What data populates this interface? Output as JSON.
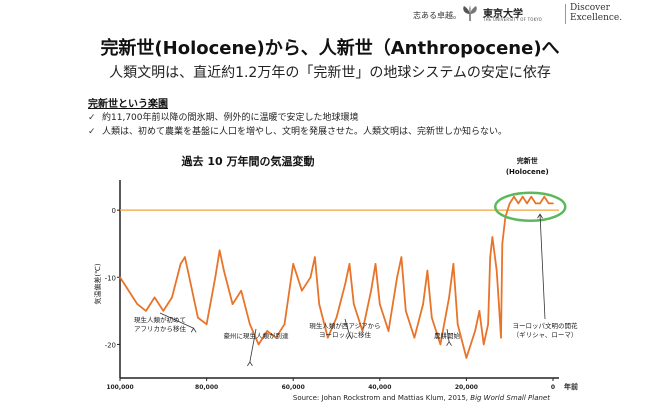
{
  "header": {
    "slogan": "志ある卓越。",
    "university_name": "東京大学",
    "university_sub": "THE UNIVERSITY OF TOKYO",
    "tagline_line1": "Discover",
    "tagline_line2": "Excellence."
  },
  "slide": {
    "title": "完新世(Holocene)から、人新世（Anthropocene)へ",
    "subtitle": "人類文明は、直近約1.2万年の「完新世」の地球システムの安定に依存",
    "section_title": "完新世という楽園",
    "bullets": [
      "約11,700年前以降の間氷期、例外的に温暖で安定した地球環境",
      "人類は、初めて農業を基盤に人口を増やし、文明を発展させた。人類文明は、完新世しか知らない。"
    ],
    "check_glyph": "✓",
    "source_prefix": "Source: Johan Rockstrom and Mattias Klum, 2015, ",
    "source_book": "Big World Small Planet"
  },
  "chart_data": {
    "type": "line",
    "title": "過去 10 万年間の気温変動",
    "ylabel": "気温偏差(℃)",
    "xlabel": "年前",
    "x_ticks": [
      "100,000",
      "80,000",
      "60,000",
      "40,000",
      "20,000",
      "0"
    ],
    "y_ticks": [
      "0",
      "-10",
      "-20"
    ],
    "xlim": [
      100000,
      0
    ],
    "ylim": [
      -25,
      3
    ],
    "grid": false,
    "reference_line": {
      "y": 0,
      "color": "#f2a33a"
    },
    "series_color": "#e8742a",
    "highlight_color": "#5cb85c",
    "holocene_label_line1": "完新世",
    "holocene_label_line2": "(Holocene)",
    "series": [
      {
        "x": [
          100000,
          98000,
          96000,
          94000,
          92000,
          90000,
          88000,
          86000,
          85000,
          84000,
          82000,
          80000,
          78000,
          77000,
          76000,
          74000,
          72000,
          70000,
          68000,
          66000,
          64000,
          62000,
          60000,
          58000,
          56000,
          55000,
          54000,
          52000,
          50000,
          48000,
          47000,
          46000,
          44000,
          42000,
          41000,
          40000,
          38000,
          36000,
          35000,
          34000,
          32000,
          30000,
          29000,
          28000,
          26000,
          24000,
          23000,
          22000,
          20000,
          18000,
          17000,
          16000,
          15000,
          14500,
          14000,
          13000,
          12500,
          12000,
          11700,
          11000,
          10000,
          9000,
          8000,
          7000,
          6000,
          5000,
          4000,
          3000,
          2000,
          1000,
          0
        ],
        "y": [
          -10,
          -12,
          -14,
          -15,
          -13,
          -15,
          -13,
          -8,
          -7,
          -10,
          -16,
          -17,
          -10,
          -6,
          -9,
          -14,
          -12,
          -17,
          -20,
          -18,
          -19,
          -17,
          -8,
          -12,
          -10,
          -7,
          -14,
          -19,
          -16,
          -11,
          -8,
          -14,
          -18,
          -12,
          -8,
          -14,
          -18,
          -10,
          -7,
          -15,
          -19,
          -14,
          -9,
          -16,
          -20,
          -13,
          -8,
          -17,
          -22,
          -18,
          -15,
          -20,
          -17,
          -7,
          -4,
          -9,
          -14,
          -19,
          -5,
          -1,
          1,
          2,
          1,
          2,
          1,
          2,
          1,
          1,
          2,
          1,
          1
        ]
      }
    ],
    "annotations": [
      {
        "label": "現生人類が初めて\nアフリカから移住",
        "x": 83000,
        "y": -17
      },
      {
        "label": "豪州に現生人類が到達",
        "x": 70000,
        "y": -22
      },
      {
        "label": "現生人類が西アジアから\nヨーロッパに移住",
        "x": 47000,
        "y": -18
      },
      {
        "label": "農耕開始",
        "x": 24000,
        "y": -19
      },
      {
        "label": "ヨーロッパ文明の開花\n（ギリシャ、ローマ）",
        "x": 3000,
        "y": 0
      }
    ]
  }
}
